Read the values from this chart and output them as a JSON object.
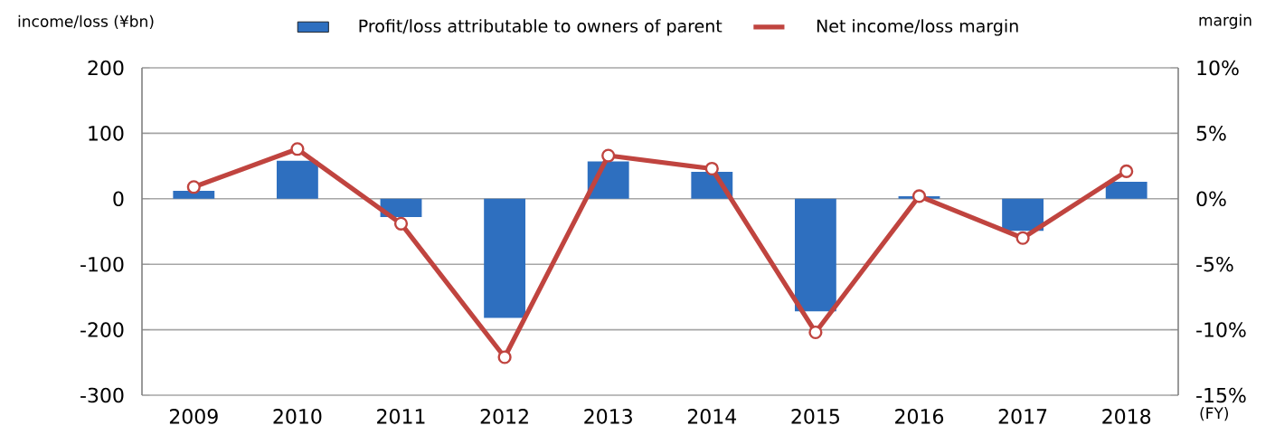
{
  "chart_data": {
    "type": "bar",
    "ylabel": "income/loss (¥bn)",
    "y2label": "margin",
    "xlabel": "(FY)",
    "categories": [
      "2009",
      "2010",
      "2011",
      "2012",
      "2013",
      "2014",
      "2015",
      "2016",
      "2017",
      "2018"
    ],
    "series": [
      {
        "name": "Profit/loss attributable to owners of parent",
        "color": "#2e6fbf",
        "values": [
          12,
          58,
          -28,
          -182,
          57,
          41,
          -172,
          4,
          -49,
          26
        ]
      },
      {
        "name": "Net income/loss margin",
        "type": "line",
        "axis": "y2",
        "color": "#c0443f",
        "marker": "circle",
        "values": [
          0.9,
          3.8,
          -1.9,
          -12.1,
          3.3,
          2.3,
          -10.2,
          0.2,
          -3.0,
          2.1
        ]
      }
    ],
    "ylim": [
      -300,
      200
    ],
    "yticks": [
      -300,
      -200,
      -100,
      0,
      100,
      200
    ],
    "y2lim": [
      -15,
      10
    ],
    "y2ticks": [
      {
        "value": -15,
        "label": "-15%"
      },
      {
        "value": -10,
        "label": "-10%"
      },
      {
        "value": -5,
        "label": "-5%"
      },
      {
        "value": 0,
        "label": "0%"
      },
      {
        "value": 5,
        "label": "5%"
      },
      {
        "value": 10,
        "label": "10%"
      }
    ],
    "grid": "y",
    "legend": "top"
  }
}
